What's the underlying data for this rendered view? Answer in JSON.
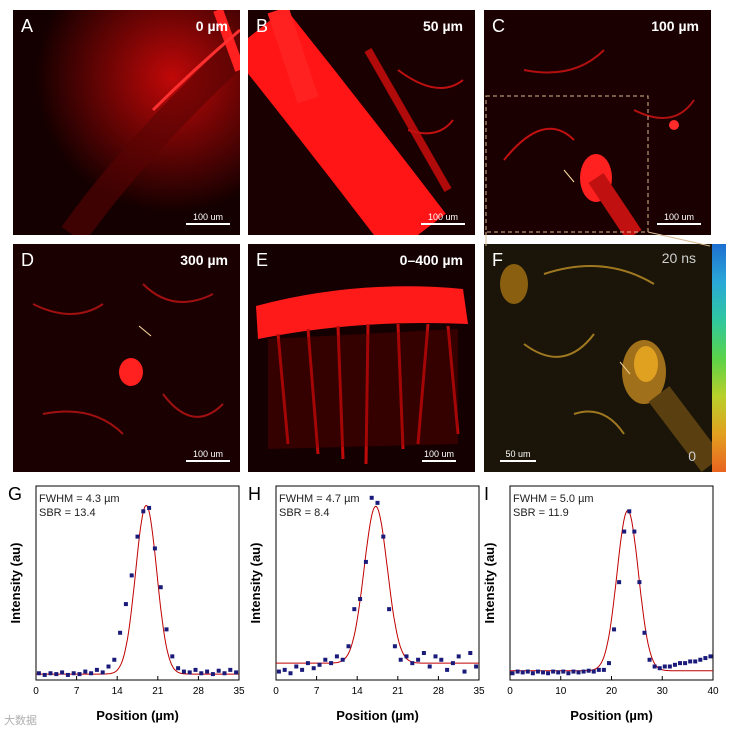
{
  "panels": {
    "A": {
      "letter": "A",
      "depth": "0 µm",
      "scale": "100 um"
    },
    "B": {
      "letter": "B",
      "depth": "50 µm",
      "scale": "100 um"
    },
    "C": {
      "letter": "C",
      "depth": "100 µm",
      "scale": "100 um"
    },
    "D": {
      "letter": "D",
      "depth": "300 µm",
      "scale": "100 um"
    },
    "E": {
      "letter": "E",
      "depth": "0–400 µm",
      "scale": "100 um"
    },
    "F": {
      "letter": "F",
      "scale": "50 um",
      "cbar_top": "20 ns",
      "cbar_bottom": "0"
    }
  },
  "colors": {
    "red": "#ff1a1a",
    "gold": "#e0a020",
    "marker": "#1a1a7a",
    "fit": "#c00000"
  },
  "watermark": "大数据",
  "chart_data": [
    {
      "panel": "G",
      "type": "scatter",
      "annotation_1": "FWHM = 4.3 µm",
      "annotation_2": "SBR = 13.4",
      "xlabel": "Position (µm)",
      "ylabel": "Intensity (au)",
      "xlim": [
        0,
        35
      ],
      "ylim": [
        0,
        1.15
      ],
      "xticks": [
        0,
        7,
        14,
        21,
        28,
        35
      ],
      "fit": {
        "center": 19.0,
        "fwhm": 4.3,
        "amplitude": 1.0,
        "baseline": 0.035
      },
      "points": [
        [
          0.5,
          0.04
        ],
        [
          1.5,
          0.03
        ],
        [
          2.5,
          0.04
        ],
        [
          3.5,
          0.035
        ],
        [
          4.5,
          0.045
        ],
        [
          5.5,
          0.03
        ],
        [
          6.5,
          0.04
        ],
        [
          7.5,
          0.035
        ],
        [
          8.5,
          0.05
        ],
        [
          9.5,
          0.04
        ],
        [
          10.5,
          0.06
        ],
        [
          11.5,
          0.045
        ],
        [
          12.5,
          0.08
        ],
        [
          13.5,
          0.12
        ],
        [
          14.5,
          0.28
        ],
        [
          15.5,
          0.45
        ],
        [
          16.5,
          0.62
        ],
        [
          17.5,
          0.85
        ],
        [
          18.5,
          1.0
        ],
        [
          19.5,
          1.02
        ],
        [
          20.5,
          0.78
        ],
        [
          21.5,
          0.55
        ],
        [
          22.5,
          0.3
        ],
        [
          23.5,
          0.14
        ],
        [
          24.5,
          0.07
        ],
        [
          25.5,
          0.05
        ],
        [
          26.5,
          0.045
        ],
        [
          27.5,
          0.06
        ],
        [
          28.5,
          0.04
        ],
        [
          29.5,
          0.05
        ],
        [
          30.5,
          0.035
        ],
        [
          31.5,
          0.055
        ],
        [
          32.5,
          0.04
        ],
        [
          33.5,
          0.06
        ],
        [
          34.5,
          0.045
        ]
      ]
    },
    {
      "panel": "H",
      "type": "scatter",
      "annotation_1": "FWHM = 4.7 µm",
      "annotation_2": "SBR = 8.4",
      "xlabel": "Position (µm)",
      "ylabel": "Intensity (au)",
      "xlim": [
        0,
        35
      ],
      "ylim": [
        0,
        1.15
      ],
      "xticks": [
        0,
        7,
        14,
        21,
        28,
        35
      ],
      "fit": {
        "center": 17.2,
        "fwhm": 4.7,
        "amplitude": 0.93,
        "baseline": 0.1
      },
      "points": [
        [
          0.5,
          0.05
        ],
        [
          1.5,
          0.06
        ],
        [
          2.5,
          0.04
        ],
        [
          3.5,
          0.08
        ],
        [
          4.5,
          0.06
        ],
        [
          5.5,
          0.1
        ],
        [
          6.5,
          0.07
        ],
        [
          7.5,
          0.09
        ],
        [
          8.5,
          0.12
        ],
        [
          9.5,
          0.1
        ],
        [
          10.5,
          0.14
        ],
        [
          11.5,
          0.12
        ],
        [
          12.5,
          0.2
        ],
        [
          13.5,
          0.42
        ],
        [
          14.5,
          0.48
        ],
        [
          15.5,
          0.7
        ],
        [
          16.5,
          1.08
        ],
        [
          17.5,
          1.05
        ],
        [
          18.5,
          0.85
        ],
        [
          19.5,
          0.42
        ],
        [
          20.5,
          0.2
        ],
        [
          21.5,
          0.12
        ],
        [
          22.5,
          0.14
        ],
        [
          23.5,
          0.1
        ],
        [
          24.5,
          0.12
        ],
        [
          25.5,
          0.16
        ],
        [
          26.5,
          0.08
        ],
        [
          27.5,
          0.14
        ],
        [
          28.5,
          0.12
        ],
        [
          29.5,
          0.06
        ],
        [
          30.5,
          0.1
        ],
        [
          31.5,
          0.14
        ],
        [
          32.5,
          0.05
        ],
        [
          33.5,
          0.16
        ],
        [
          34.5,
          0.08
        ]
      ]
    },
    {
      "panel": "I",
      "type": "scatter",
      "annotation_1": "FWHM = 5.0 µm",
      "annotation_2": "SBR = 11.9",
      "xlabel": "Position (µm)",
      "ylabel": "Intensity (au)",
      "xlim": [
        0,
        40
      ],
      "ylim": [
        0,
        1.15
      ],
      "xticks": [
        0,
        10,
        20,
        30,
        40
      ],
      "fit": {
        "center": 23.2,
        "fwhm": 5.0,
        "amplitude": 0.95,
        "baseline": 0.055
      },
      "points": [
        [
          0.5,
          0.04
        ],
        [
          1.5,
          0.05
        ],
        [
          2.5,
          0.045
        ],
        [
          3.5,
          0.05
        ],
        [
          4.5,
          0.04
        ],
        [
          5.5,
          0.05
        ],
        [
          6.5,
          0.045
        ],
        [
          7.5,
          0.04
        ],
        [
          8.5,
          0.05
        ],
        [
          9.5,
          0.045
        ],
        [
          10.5,
          0.05
        ],
        [
          11.5,
          0.04
        ],
        [
          12.5,
          0.05
        ],
        [
          13.5,
          0.045
        ],
        [
          14.5,
          0.05
        ],
        [
          15.5,
          0.055
        ],
        [
          16.5,
          0.05
        ],
        [
          17.5,
          0.06
        ],
        [
          18.5,
          0.06
        ],
        [
          19.5,
          0.1
        ],
        [
          20.5,
          0.3
        ],
        [
          21.5,
          0.58
        ],
        [
          22.5,
          0.88
        ],
        [
          23.5,
          1.0
        ],
        [
          24.5,
          0.88
        ],
        [
          25.5,
          0.58
        ],
        [
          26.5,
          0.28
        ],
        [
          27.5,
          0.12
        ],
        [
          28.5,
          0.08
        ],
        [
          29.5,
          0.07
        ],
        [
          30.5,
          0.08
        ],
        [
          31.5,
          0.08
        ],
        [
          32.5,
          0.09
        ],
        [
          33.5,
          0.1
        ],
        [
          34.5,
          0.1
        ],
        [
          35.5,
          0.11
        ],
        [
          36.5,
          0.11
        ],
        [
          37.5,
          0.12
        ],
        [
          38.5,
          0.13
        ],
        [
          39.5,
          0.14
        ]
      ]
    }
  ]
}
